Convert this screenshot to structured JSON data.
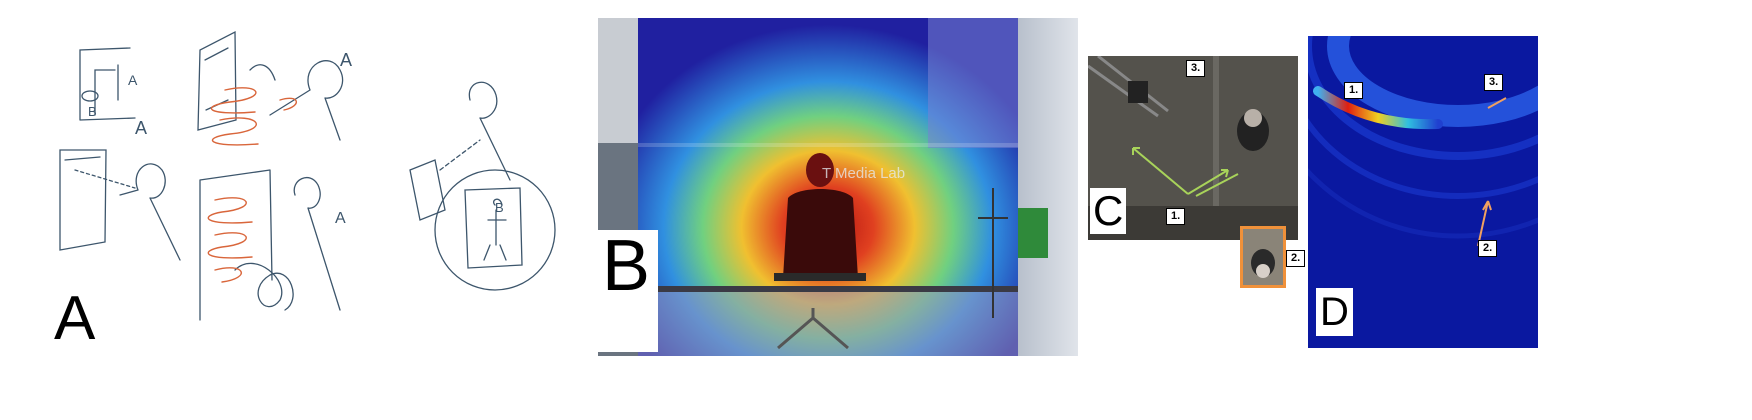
{
  "panels": {
    "a": {
      "label": "A",
      "sketch_labels": [
        "A",
        "A",
        "A",
        "A",
        "B",
        "B"
      ]
    },
    "b": {
      "label": "B",
      "wall_text": "T Media Lab"
    },
    "c": {
      "label": "C",
      "markers": [
        "1.",
        "2.",
        "3."
      ]
    },
    "d": {
      "label": "D",
      "markers": [
        "1.",
        "2.",
        "3."
      ]
    }
  },
  "colors": {
    "sketch_ink": "#3d566c",
    "sketch_accent": "#d9663b",
    "arrow_green": "#a8d35a",
    "inset_border": "#f0913a",
    "heatmap_blue": "#0a1aa8",
    "arrow_orange": "#f0a060"
  }
}
